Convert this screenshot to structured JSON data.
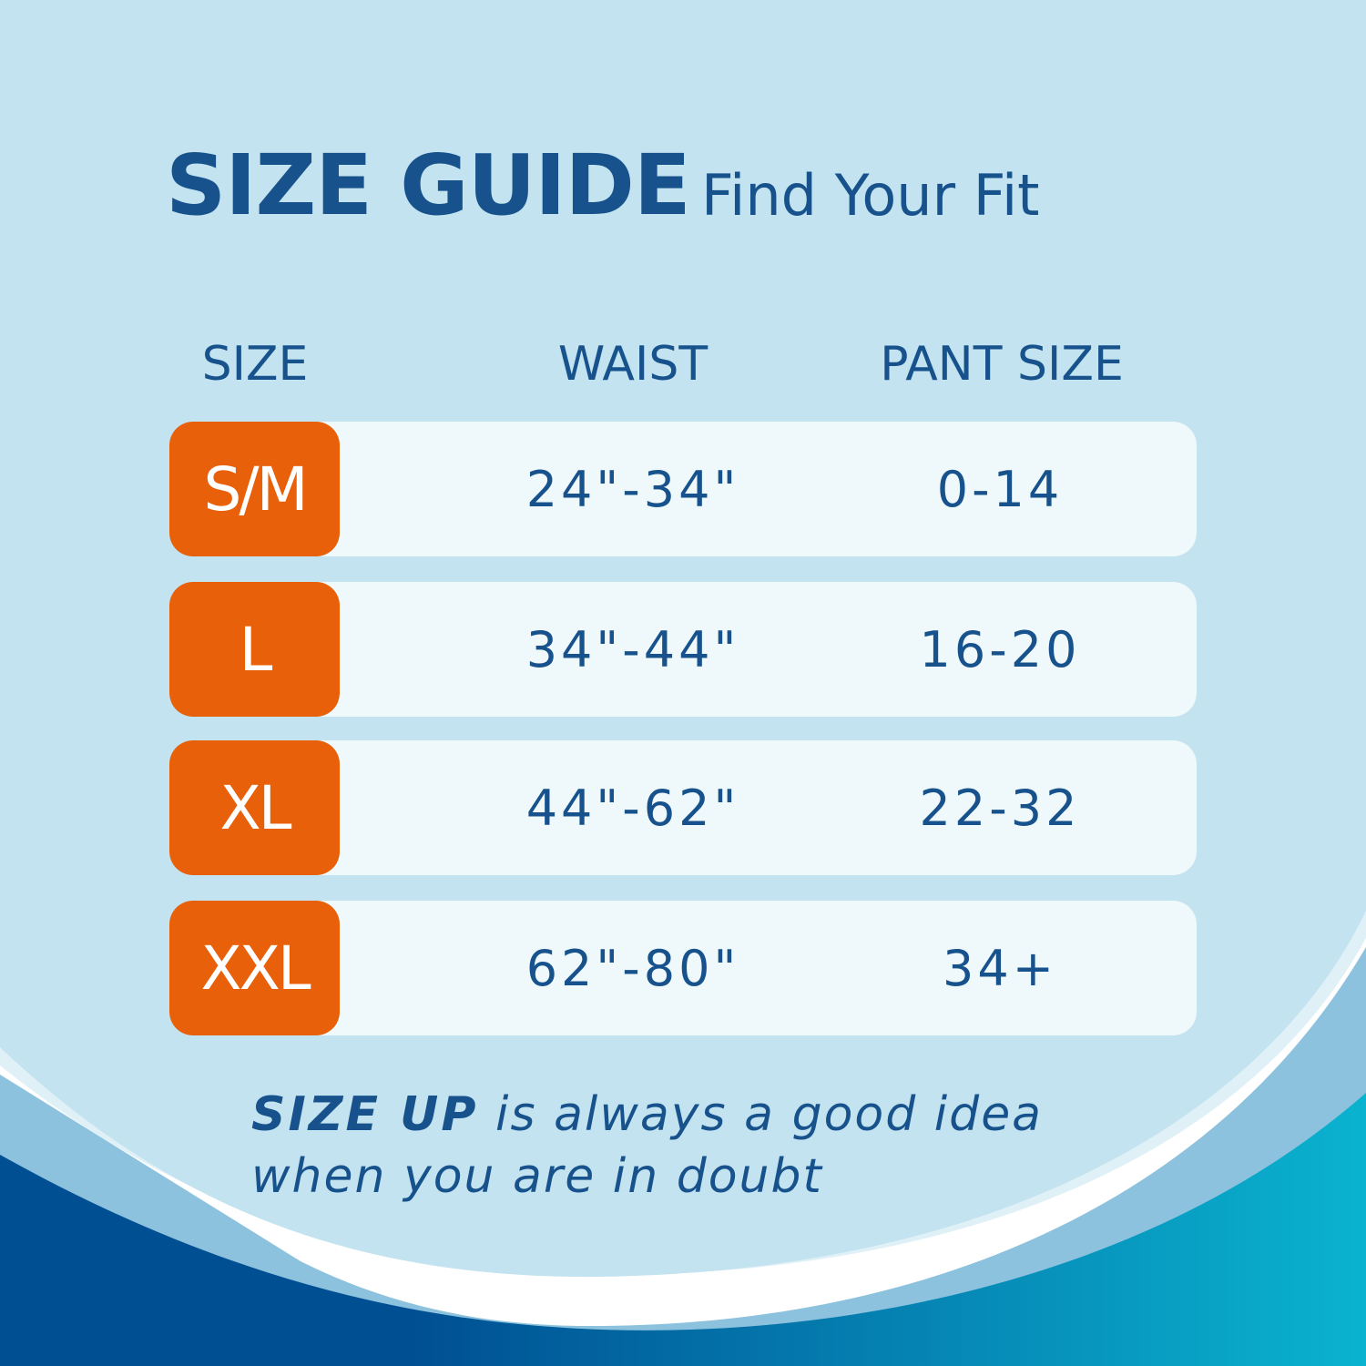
{
  "header": {
    "title": "SIZE GUIDE",
    "subtitle": "Find Your Fit"
  },
  "table": {
    "columns": [
      "SIZE",
      "WAIST",
      "PANT SIZE"
    ],
    "rows": [
      {
        "size": "S/M",
        "waist": "24\"-34\"",
        "pant": "0-14"
      },
      {
        "size": "L",
        "waist": "34\"-44\"",
        "pant": "16-20"
      },
      {
        "size": "XL",
        "waist": "44\"-62\"",
        "pant": "22-32"
      },
      {
        "size": "XXL",
        "waist": "62\"-80\"",
        "pant": "34+"
      }
    ]
  },
  "note": {
    "emphasis": "SIZE UP",
    "line1_rest": " is always a good idea",
    "line2": "when you are in doubt"
  },
  "colors": {
    "text": "#17528c",
    "badge": "#e8600a",
    "row_bg": "#eff8fb",
    "background": "#c2e3ef",
    "wave_dark": "#004f93",
    "wave_teal": "#0ab3cf"
  }
}
